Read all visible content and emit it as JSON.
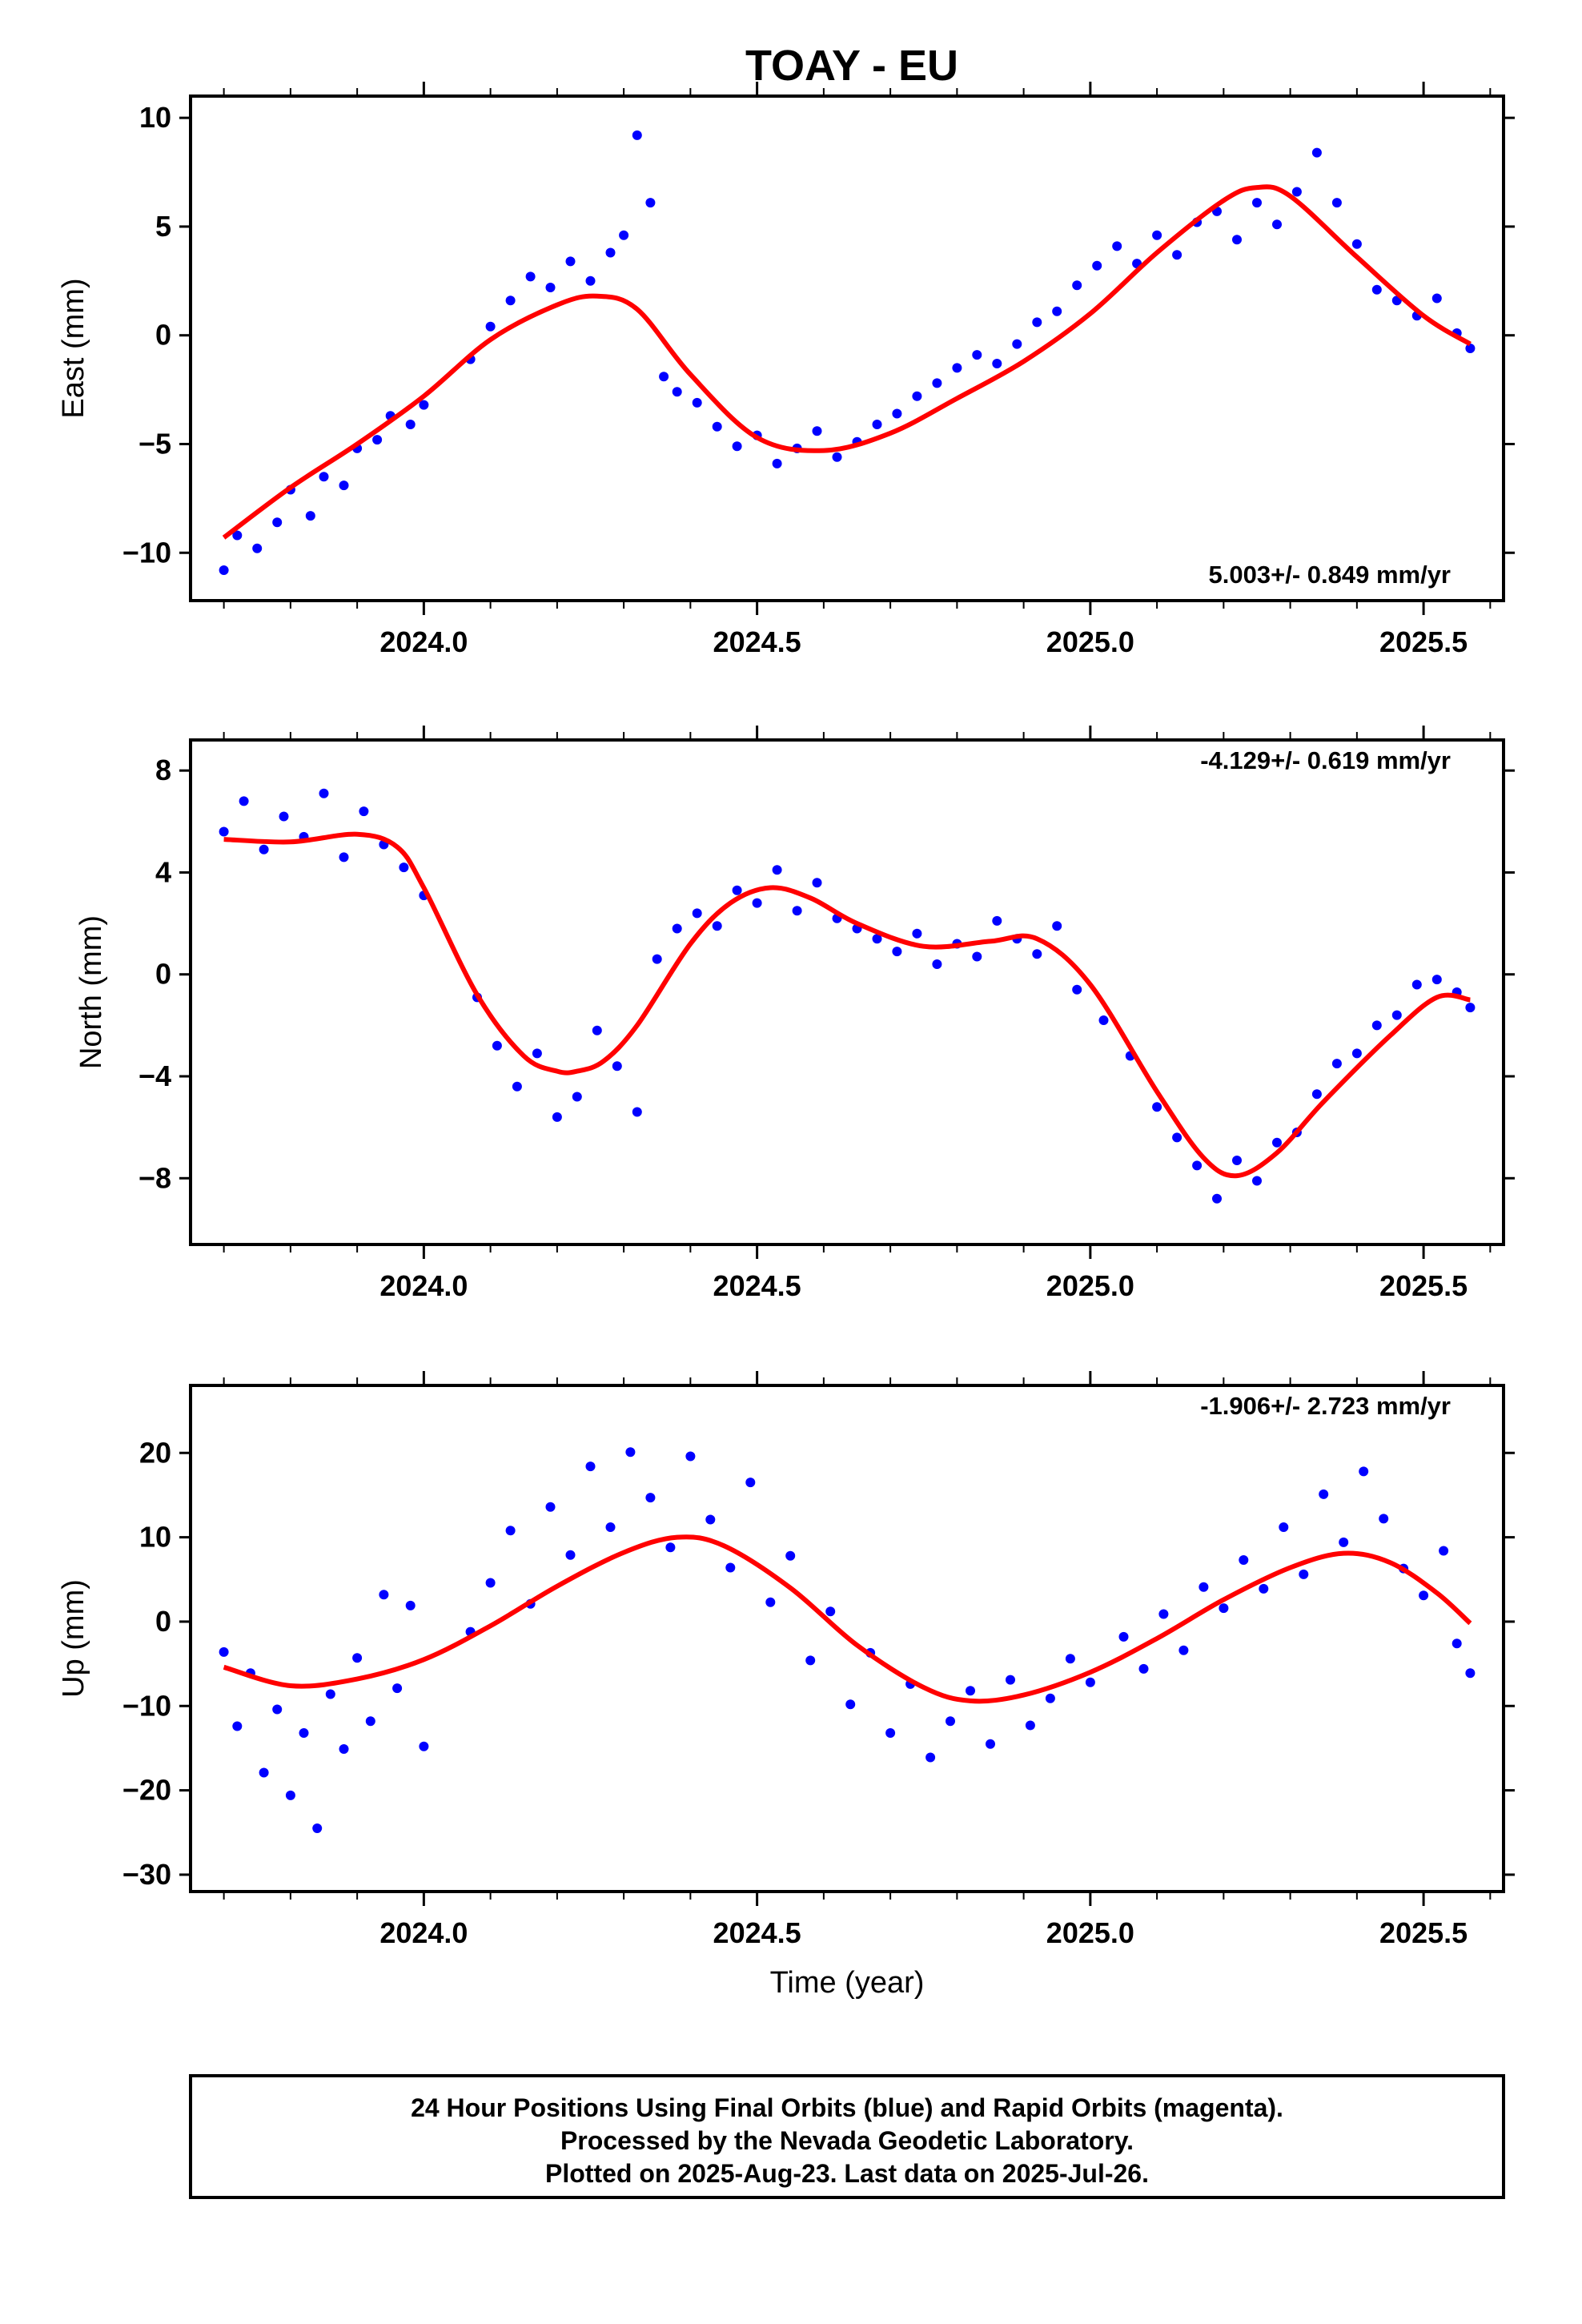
{
  "title": "TOAY - EU",
  "xlabel": "Time (year)",
  "x_ticks": [
    "2024.0",
    "2024.5",
    "2025.0",
    "2025.5"
  ],
  "footer": {
    "line1": "24 Hour Positions Using Final Orbits (blue) and Rapid Orbits (magenta).",
    "line2": "Processed by the Nevada Geodetic Laboratory.",
    "line3": "Plotted on 2025-Aug-23. Last data on 2025-Jul-26."
  },
  "colors": {
    "final_orbits": "#0000ff",
    "fit": "#ff0000",
    "frame": "#000000"
  },
  "panels": [
    {
      "ylabel": "East (mm)",
      "yticks": [
        "10",
        "5",
        "0",
        "−5",
        "−10"
      ],
      "rate": "5.003+/- 0.849 mm/yr"
    },
    {
      "ylabel": "North (mm)",
      "yticks": [
        "8",
        "4",
        "0",
        "−4",
        "−8"
      ],
      "rate": "-4.129+/- 0.619 mm/yr"
    },
    {
      "ylabel": "Up (mm)",
      "yticks": [
        "20",
        "10",
        "0",
        "−10",
        "−20",
        "−30"
      ],
      "rate": "-1.906+/- 2.723 mm/yr"
    }
  ],
  "chart_data": [
    {
      "type": "scatter",
      "name": "East",
      "xlim": [
        2023.65,
        2025.62
      ],
      "ylim": [
        -12.2,
        11
      ],
      "yticks": [
        10,
        5,
        0,
        -5,
        -10
      ],
      "xticks": [
        2024.0,
        2024.5,
        2025.0,
        2025.5
      ],
      "fit": {
        "x": [
          2023.7,
          2023.8,
          2023.9,
          2024.0,
          2024.1,
          2024.2,
          2024.26,
          2024.32,
          2024.4,
          2024.5,
          2024.6,
          2024.7,
          2024.8,
          2024.9,
          2025.0,
          2025.1,
          2025.2,
          2025.25,
          2025.3,
          2025.4,
          2025.5,
          2025.57
        ],
        "y": [
          -9.3,
          -7.0,
          -5.0,
          -2.8,
          -0.2,
          1.4,
          1.8,
          1.2,
          -1.8,
          -4.7,
          -5.3,
          -4.5,
          -2.9,
          -1.2,
          1.0,
          3.8,
          6.2,
          6.8,
          6.4,
          3.6,
          0.9,
          -0.4
        ]
      },
      "scatter": {
        "x": [
          2023.7,
          2023.72,
          2023.75,
          2023.78,
          2023.8,
          2023.83,
          2023.85,
          2023.88,
          2023.9,
          2023.93,
          2023.95,
          2023.98,
          2024.0,
          2024.07,
          2024.1,
          2024.13,
          2024.16,
          2024.19,
          2024.22,
          2024.25,
          2024.28,
          2024.3,
          2024.32,
          2024.34,
          2024.36,
          2024.38,
          2024.41,
          2024.44,
          2024.47,
          2024.5,
          2024.53,
          2024.56,
          2024.59,
          2024.62,
          2024.65,
          2024.68,
          2024.71,
          2024.74,
          2024.77,
          2024.8,
          2024.83,
          2024.86,
          2024.89,
          2024.92,
          2024.95,
          2024.98,
          2025.01,
          2025.04,
          2025.07,
          2025.1,
          2025.13,
          2025.16,
          2025.19,
          2025.22,
          2025.25,
          2025.28,
          2025.31,
          2025.34,
          2025.37,
          2025.4,
          2025.43,
          2025.46,
          2025.49,
          2025.52,
          2025.55,
          2025.57
        ],
        "y": [
          -10.8,
          -9.2,
          -9.8,
          -8.6,
          -7.1,
          -8.3,
          -6.5,
          -6.9,
          -5.2,
          -4.8,
          -3.7,
          -4.1,
          -3.2,
          -1.1,
          0.4,
          1.6,
          2.7,
          2.2,
          3.4,
          2.5,
          3.8,
          4.6,
          9.2,
          6.1,
          -1.9,
          -2.6,
          -3.1,
          -4.2,
          -5.1,
          -4.6,
          -5.9,
          -5.2,
          -4.4,
          -5.6,
          -4.9,
          -4.1,
          -3.6,
          -2.8,
          -2.2,
          -1.5,
          -0.9,
          -1.3,
          -0.4,
          0.6,
          1.1,
          2.3,
          3.2,
          4.1,
          3.3,
          4.6,
          3.7,
          5.2,
          5.7,
          4.4,
          6.1,
          5.1,
          6.6,
          8.4,
          6.1,
          4.2,
          2.1,
          1.6,
          0.9,
          1.7,
          0.1,
          -0.6
        ]
      }
    },
    {
      "type": "scatter",
      "name": "North",
      "xlim": [
        2023.65,
        2025.62
      ],
      "ylim": [
        -10.6,
        9.2
      ],
      "yticks": [
        8,
        4,
        0,
        -4,
        -8
      ],
      "xticks": [
        2024.0,
        2024.5,
        2025.0,
        2025.5
      ],
      "fit": {
        "x": [
          2023.7,
          2023.8,
          2023.9,
          2023.96,
          2024.0,
          2024.08,
          2024.15,
          2024.2,
          2024.23,
          2024.27,
          2024.32,
          2024.4,
          2024.46,
          2024.52,
          2024.58,
          2024.65,
          2024.75,
          2024.85,
          2024.92,
          2025.0,
          2025.1,
          2025.17,
          2025.22,
          2025.28,
          2025.35,
          2025.45,
          2025.52,
          2025.57
        ],
        "y": [
          5.3,
          5.2,
          5.5,
          5.0,
          3.4,
          -0.8,
          -3.2,
          -3.8,
          -3.8,
          -3.4,
          -2.0,
          1.2,
          2.8,
          3.4,
          3.0,
          2.0,
          1.1,
          1.3,
          1.4,
          -0.4,
          -4.6,
          -7.2,
          -7.9,
          -7.0,
          -5.0,
          -2.4,
          -0.9,
          -1.0
        ]
      },
      "scatter": {
        "x": [
          2023.7,
          2023.73,
          2023.76,
          2023.79,
          2023.82,
          2023.85,
          2023.88,
          2023.91,
          2023.94,
          2023.97,
          2024.0,
          2024.08,
          2024.11,
          2024.14,
          2024.17,
          2024.2,
          2024.23,
          2024.26,
          2024.29,
          2024.32,
          2024.35,
          2024.38,
          2024.41,
          2024.44,
          2024.47,
          2024.5,
          2024.53,
          2024.56,
          2024.59,
          2024.62,
          2024.65,
          2024.68,
          2024.71,
          2024.74,
          2024.77,
          2024.8,
          2024.83,
          2024.86,
          2024.89,
          2024.92,
          2024.95,
          2024.98,
          2025.02,
          2025.06,
          2025.1,
          2025.13,
          2025.16,
          2025.19,
          2025.22,
          2025.25,
          2025.28,
          2025.31,
          2025.34,
          2025.37,
          2025.4,
          2025.43,
          2025.46,
          2025.49,
          2025.52,
          2025.55,
          2025.57
        ],
        "y": [
          5.6,
          6.8,
          4.9,
          6.2,
          5.4,
          7.1,
          4.6,
          6.4,
          5.1,
          4.2,
          3.1,
          -0.9,
          -2.8,
          -4.4,
          -3.1,
          -5.6,
          -4.8,
          -2.2,
          -3.6,
          -5.4,
          0.6,
          1.8,
          2.4,
          1.9,
          3.3,
          2.8,
          4.1,
          2.5,
          3.6,
          2.2,
          1.8,
          1.4,
          0.9,
          1.6,
          0.4,
          1.2,
          0.7,
          2.1,
          1.4,
          0.8,
          1.9,
          -0.6,
          -1.8,
          -3.2,
          -5.2,
          -6.4,
          -7.5,
          -8.8,
          -7.3,
          -8.1,
          -6.6,
          -6.2,
          -4.7,
          -3.5,
          -3.1,
          -2.0,
          -1.6,
          -0.4,
          -0.2,
          -0.7,
          -1.3
        ]
      }
    },
    {
      "type": "scatter",
      "name": "Up",
      "xlim": [
        2023.65,
        2025.62
      ],
      "ylim": [
        -32,
        28
      ],
      "yticks": [
        20,
        10,
        0,
        -10,
        -20,
        -30
      ],
      "xticks": [
        2024.0,
        2024.5,
        2025.0,
        2025.5
      ],
      "fit": {
        "x": [
          2023.7,
          2023.8,
          2023.9,
          2024.0,
          2024.1,
          2024.2,
          2024.3,
          2024.38,
          2024.45,
          2024.55,
          2024.65,
          2024.75,
          2024.82,
          2024.9,
          2025.0,
          2025.1,
          2025.2,
          2025.3,
          2025.38,
          2025.45,
          2025.52,
          2025.57
        ],
        "y": [
          -5.4,
          -7.6,
          -6.8,
          -4.5,
          -0.5,
          4.2,
          8.2,
          10.0,
          9.0,
          4.0,
          -2.8,
          -7.8,
          -9.4,
          -8.7,
          -6.0,
          -2.0,
          2.6,
          6.4,
          8.1,
          7.0,
          3.4,
          -0.2
        ]
      },
      "scatter": {
        "x": [
          2023.7,
          2023.72,
          2023.74,
          2023.76,
          2023.78,
          2023.8,
          2023.82,
          2023.84,
          2023.86,
          2023.88,
          2023.9,
          2023.92,
          2023.94,
          2023.96,
          2023.98,
          2024.0,
          2024.07,
          2024.1,
          2024.13,
          2024.16,
          2024.19,
          2024.22,
          2024.25,
          2024.28,
          2024.31,
          2024.34,
          2024.37,
          2024.4,
          2024.43,
          2024.46,
          2024.49,
          2024.52,
          2024.55,
          2024.58,
          2024.61,
          2024.64,
          2024.67,
          2024.7,
          2024.73,
          2024.76,
          2024.79,
          2024.82,
          2024.85,
          2024.88,
          2024.91,
          2024.94,
          2024.97,
          2025.0,
          2025.05,
          2025.08,
          2025.11,
          2025.14,
          2025.17,
          2025.2,
          2025.23,
          2025.26,
          2025.29,
          2025.32,
          2025.35,
          2025.38,
          2025.41,
          2025.44,
          2025.47,
          2025.5,
          2025.53,
          2025.55,
          2025.57
        ],
        "y": [
          -3.6,
          -12.4,
          -6.1,
          -17.9,
          -10.4,
          -20.6,
          -13.2,
          -24.5,
          -8.6,
          -15.1,
          -4.3,
          -11.8,
          3.2,
          -7.9,
          1.9,
          -14.8,
          -1.2,
          4.6,
          10.8,
          2.1,
          13.6,
          7.9,
          18.4,
          11.2,
          20.1,
          14.7,
          8.8,
          19.6,
          12.1,
          6.4,
          16.5,
          2.3,
          7.8,
          -4.6,
          1.2,
          -9.8,
          -3.7,
          -13.2,
          -7.4,
          -16.1,
          -11.8,
          -8.2,
          -14.5,
          -6.9,
          -12.3,
          -9.1,
          -4.4,
          -7.2,
          -1.8,
          -5.6,
          0.9,
          -3.4,
          4.1,
          1.6,
          7.3,
          3.9,
          11.2,
          5.6,
          15.1,
          9.4,
          17.8,
          12.2,
          6.3,
          3.1,
          8.4,
          -2.6,
          -6.1
        ]
      }
    }
  ]
}
